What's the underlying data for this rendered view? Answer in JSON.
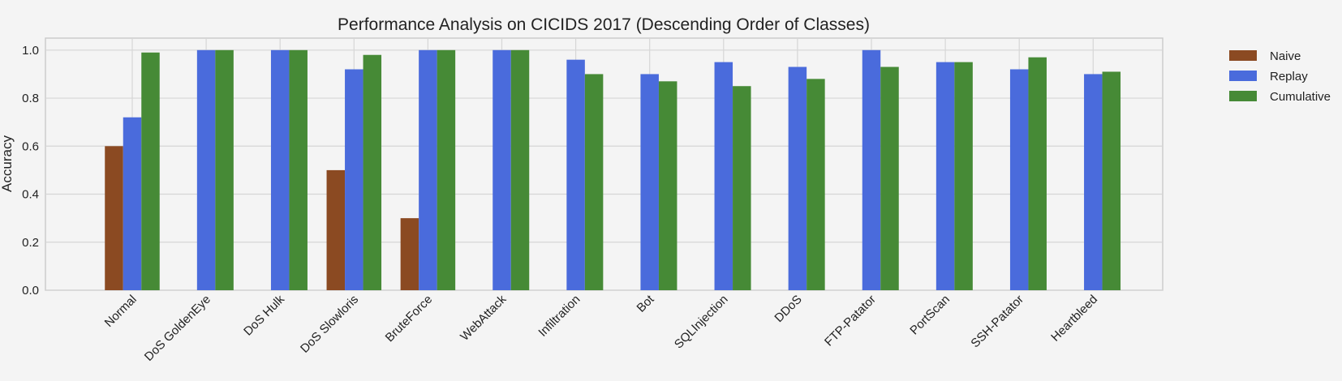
{
  "chart_data": {
    "type": "bar",
    "title": "Performance Analysis on CICIDS 2017 (Descending Order of Classes)",
    "xlabel": "",
    "ylabel": "Accuracy",
    "ylim": [
      0,
      1.05
    ],
    "yticks": [
      "0.0",
      "0.2",
      "0.4",
      "0.6",
      "0.8",
      "1.0"
    ],
    "grid": true,
    "legend_position": "outside-top-right",
    "categories": [
      "Normal",
      "DoS GoldenEye",
      "DoS Hulk",
      "DoS Slowloris",
      "BruteForce",
      "WebAttack",
      "Infiltration",
      "Bot",
      "SQLInjection",
      "DDoS",
      "FTP-Patator",
      "PortScan",
      "SSH-Patator",
      "Heartbleed"
    ],
    "series": [
      {
        "name": "Naive",
        "color": "#8b4a22",
        "values": [
          0.6,
          0,
          0,
          0.5,
          0.3,
          0,
          0,
          0,
          0,
          0,
          0,
          0,
          0,
          0
        ]
      },
      {
        "name": "Replay",
        "color": "#4a6bdc",
        "values": [
          0.72,
          1.0,
          1.0,
          0.92,
          1.0,
          1.0,
          0.96,
          0.9,
          0.95,
          0.93,
          1.0,
          0.95,
          0.92,
          0.9
        ]
      },
      {
        "name": "Cumulative",
        "color": "#468a36",
        "values": [
          0.99,
          1.0,
          1.0,
          0.98,
          1.0,
          1.0,
          0.9,
          0.87,
          0.85,
          0.88,
          0.93,
          0.95,
          0.97,
          0.91
        ]
      }
    ]
  }
}
